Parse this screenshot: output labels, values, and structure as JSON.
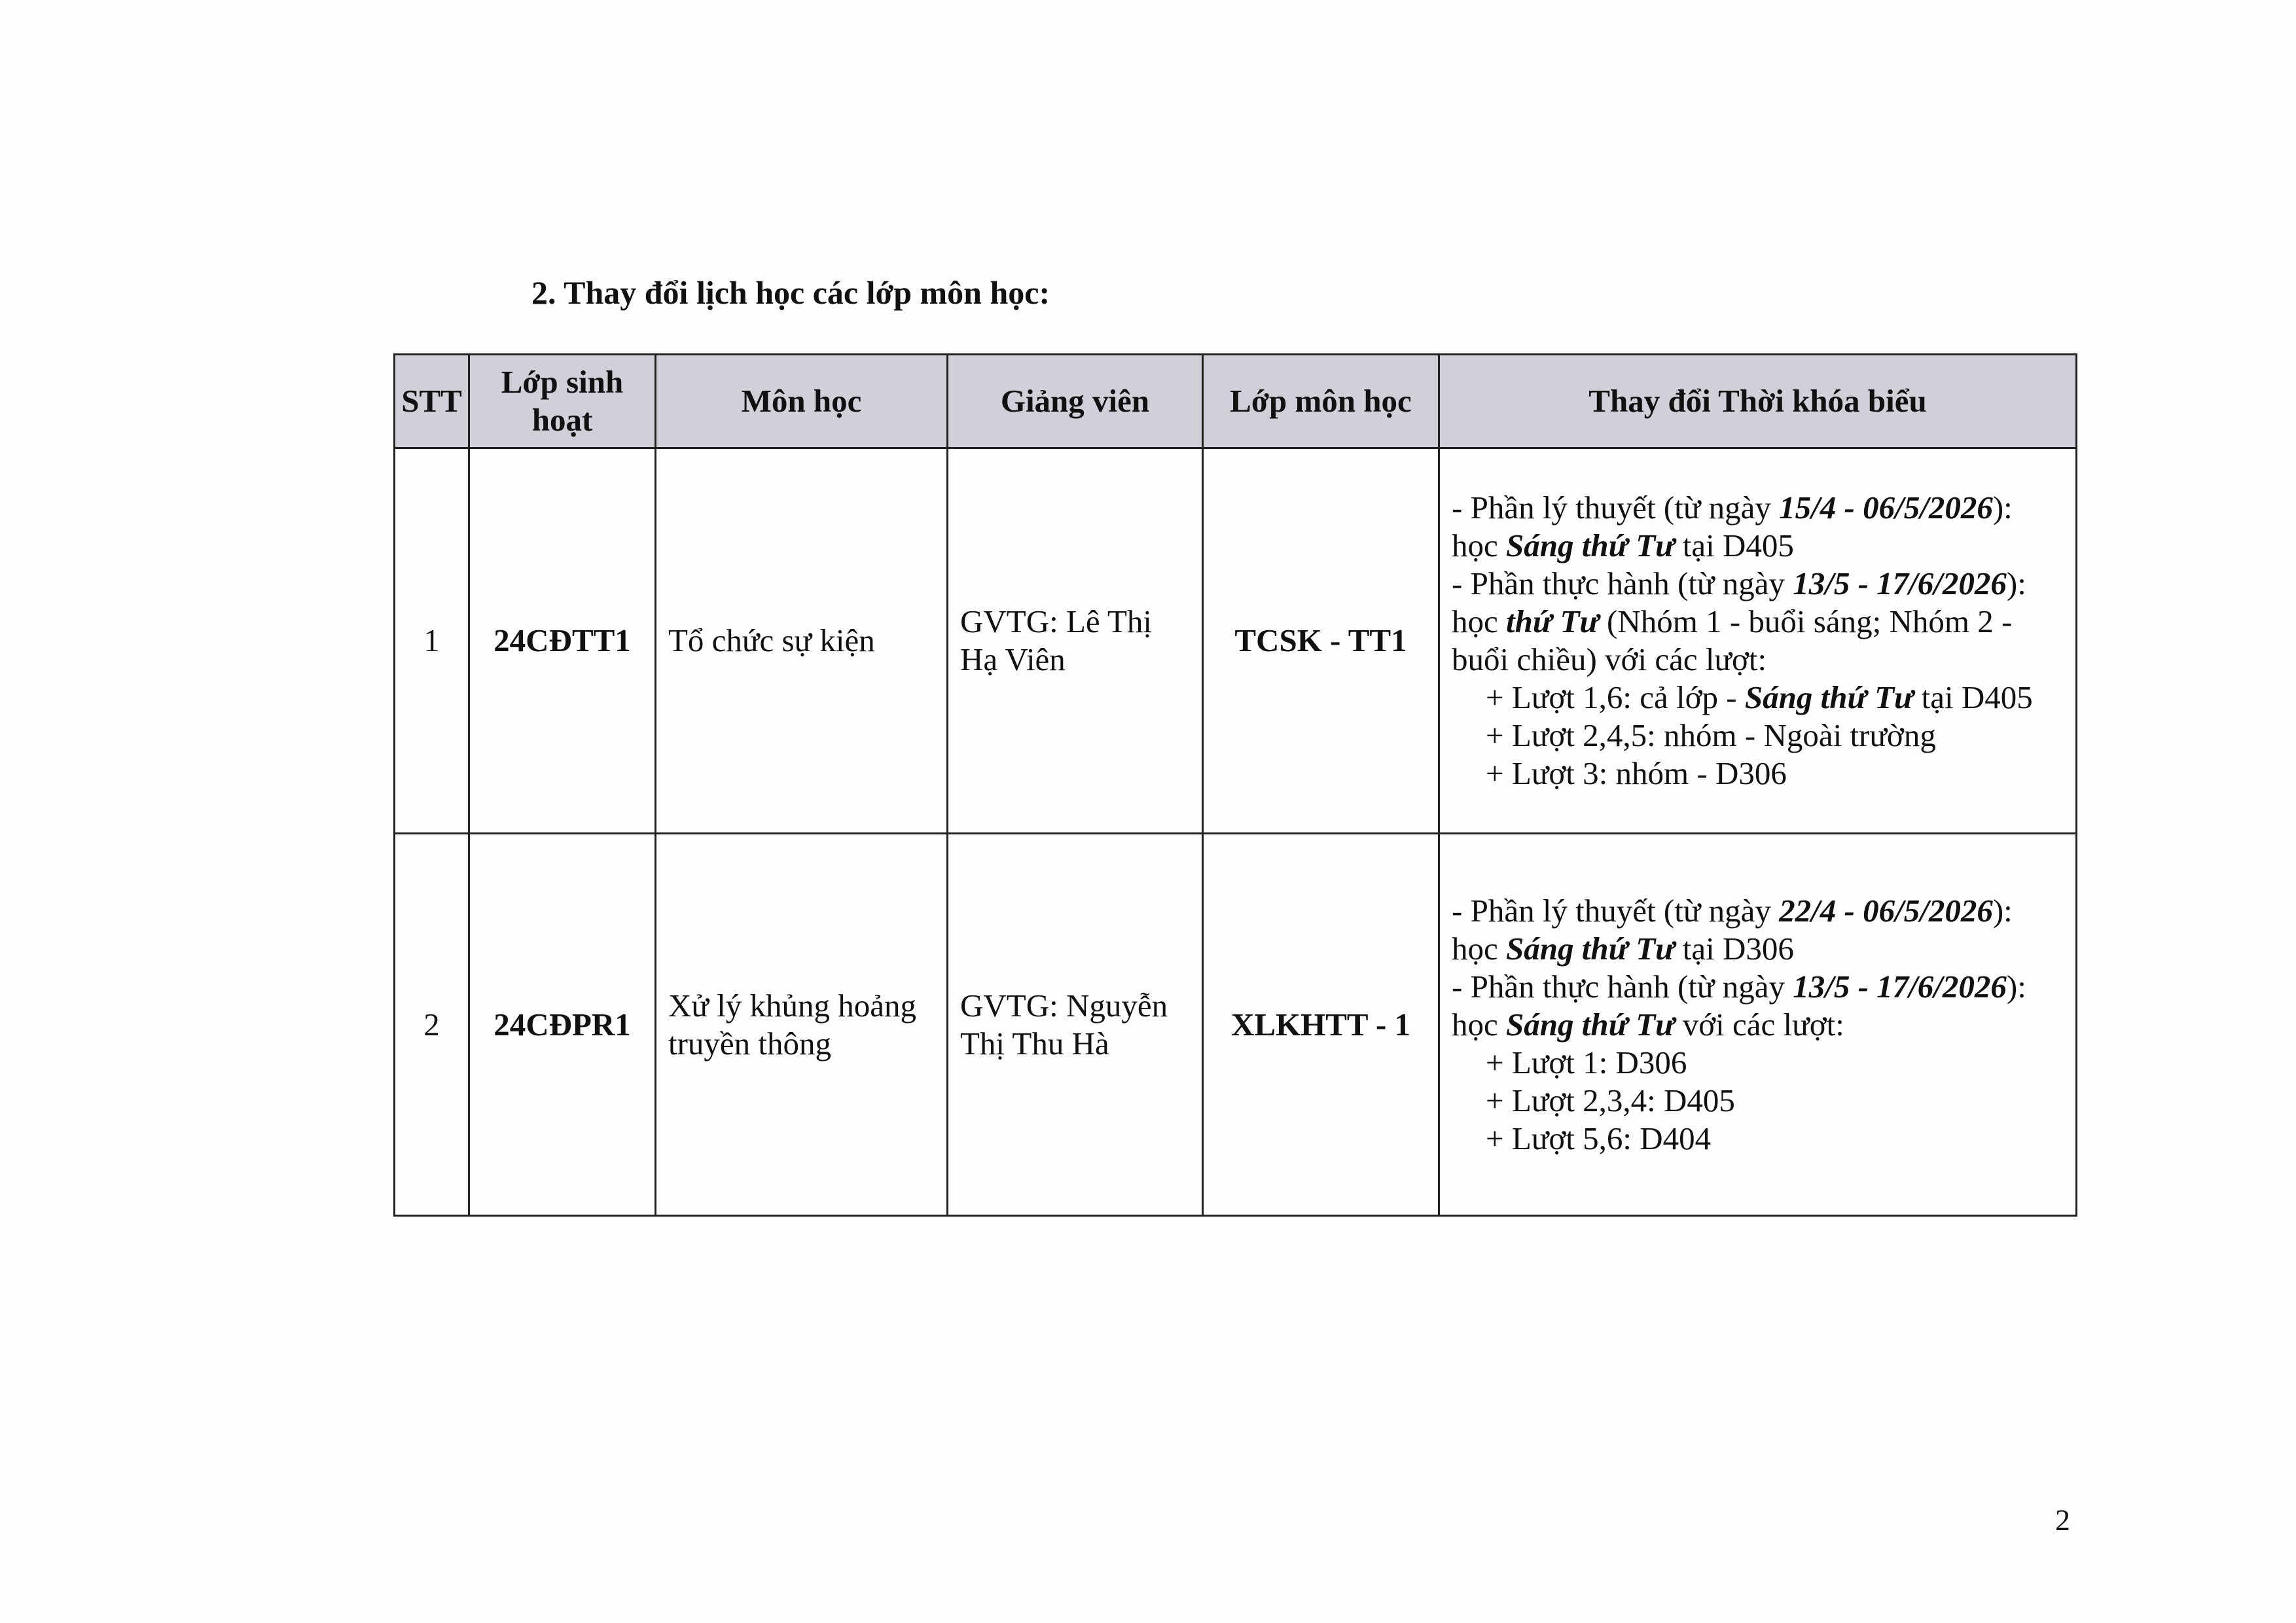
{
  "section_title": "2.  Thay đổi lịch học các lớp môn học:",
  "table": {
    "headers": [
      "STT",
      "Lớp sinh hoạt",
      "Môn học",
      "Giảng viên",
      "Lớp môn học",
      "Thay đổi Thời khóa biểu"
    ],
    "rows": [
      {
        "stt": "1",
        "lop_sinh_hoat": "24CĐTT1",
        "mon_hoc": "Tổ chức sự kiện",
        "giang_vien": "GVTG: Lê Thị Hạ Viên",
        "lop_mon_hoc": "TCSK - TT1",
        "schedule": [
          {
            "indent": false,
            "segments": [
              {
                "text": "- Phần lý thuyết (từ ngày ",
                "bi": false
              },
              {
                "text": "15/4 - 06/5/2026",
                "bi": true
              },
              {
                "text": "):",
                "bi": false
              }
            ]
          },
          {
            "indent": false,
            "segments": [
              {
                "text": "học ",
                "bi": false
              },
              {
                "text": "Sáng thứ Tư",
                "bi": true
              },
              {
                "text": " tại D405",
                "bi": false
              }
            ]
          },
          {
            "indent": false,
            "segments": [
              {
                "text": "- Phần thực hành (từ ngày ",
                "bi": false
              },
              {
                "text": "13/5 - 17/6/2026",
                "bi": true
              },
              {
                "text": "):",
                "bi": false
              }
            ]
          },
          {
            "indent": false,
            "segments": [
              {
                "text": "học ",
                "bi": false
              },
              {
                "text": "thứ Tư",
                "bi": true
              },
              {
                "text": " (Nhóm 1 - buổi sáng; Nhóm 2 -",
                "bi": false
              }
            ]
          },
          {
            "indent": false,
            "segments": [
              {
                "text": "buổi chiều) với các lượt:",
                "bi": false
              }
            ]
          },
          {
            "indent": true,
            "segments": [
              {
                "text": "+ Lượt 1,6: cả lớp - ",
                "bi": false
              },
              {
                "text": "Sáng thứ Tư",
                "bi": true
              },
              {
                "text": " tại D405",
                "bi": false
              }
            ]
          },
          {
            "indent": true,
            "segments": [
              {
                "text": "+ Lượt 2,4,5: nhóm - Ngoài trường",
                "bi": false
              }
            ]
          },
          {
            "indent": true,
            "segments": [
              {
                "text": "+ Lượt 3: nhóm - D306",
                "bi": false
              }
            ]
          }
        ]
      },
      {
        "stt": "2",
        "lop_sinh_hoat": "24CĐPR1",
        "mon_hoc": "Xử lý khủng hoảng truyền thông",
        "giang_vien": "GVTG: Nguyễn Thị Thu Hà",
        "lop_mon_hoc": "XLKHTT - 1",
        "schedule": [
          {
            "indent": false,
            "segments": [
              {
                "text": "- Phần lý thuyết (từ ngày ",
                "bi": false
              },
              {
                "text": "22/4 - 06/5/2026",
                "bi": true
              },
              {
                "text": "):",
                "bi": false
              }
            ]
          },
          {
            "indent": false,
            "segments": [
              {
                "text": "học ",
                "bi": false
              },
              {
                "text": "Sáng thứ Tư",
                "bi": true
              },
              {
                "text": " tại D306",
                "bi": false
              }
            ]
          },
          {
            "indent": false,
            "segments": [
              {
                "text": "- Phần thực hành (từ ngày ",
                "bi": false
              },
              {
                "text": "13/5 - 17/6/2026",
                "bi": true
              },
              {
                "text": "):",
                "bi": false
              }
            ]
          },
          {
            "indent": false,
            "segments": [
              {
                "text": "học ",
                "bi": false
              },
              {
                "text": "Sáng thứ Tư",
                "bi": true
              },
              {
                "text": " với các lượt:",
                "bi": false
              }
            ]
          },
          {
            "indent": true,
            "segments": [
              {
                "text": "+ Lượt 1: D306",
                "bi": false
              }
            ]
          },
          {
            "indent": true,
            "segments": [
              {
                "text": "+ Lượt 2,3,4: D405",
                "bi": false
              }
            ]
          },
          {
            "indent": true,
            "segments": [
              {
                "text": "+ Lượt 5,6: D404",
                "bi": false
              }
            ]
          }
        ]
      }
    ]
  },
  "page_number": "2"
}
